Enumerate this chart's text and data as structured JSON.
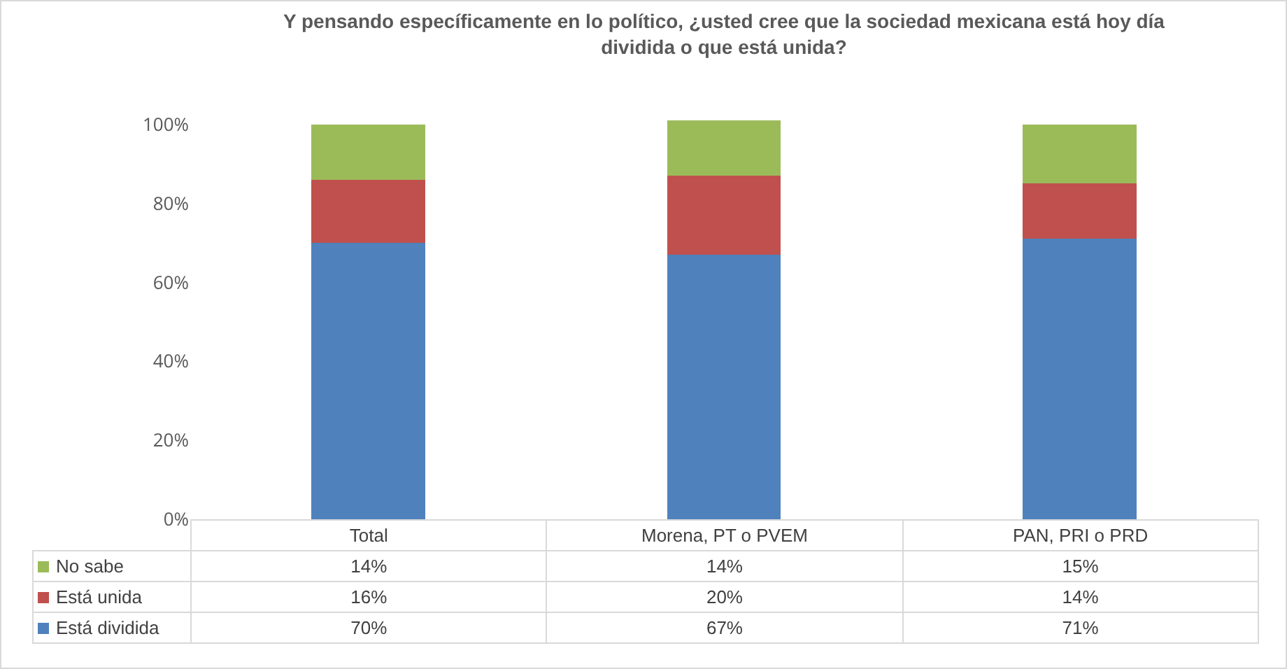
{
  "chart_data": {
    "type": "bar",
    "title": "Y pensando específicamente en lo político, ¿usted cree que la sociedad mexicana está hoy día dividida o que está unida?",
    "categories": [
      "Total",
      "Morena, PT o PVEM",
      "PAN, PRI o PRD"
    ],
    "stacked": true,
    "series": [
      {
        "name": "Está dividida",
        "color": "#4f81bd",
        "values": [
          70,
          67,
          71
        ],
        "value_labels": [
          "70%",
          "67%",
          "71%"
        ]
      },
      {
        "name": "Está unida",
        "color": "#c0504d",
        "values": [
          16,
          20,
          14
        ],
        "value_labels": [
          "16%",
          "20%",
          "14%"
        ]
      },
      {
        "name": "No sabe",
        "color": "#9bbb59",
        "values": [
          14,
          14,
          15
        ],
        "value_labels": [
          "14%",
          "14%",
          "15%"
        ]
      }
    ],
    "ylim": [
      0,
      101
    ],
    "legend": "bottom left",
    "yticks": [
      {
        "value": 0,
        "label": "0%"
      },
      {
        "value": 20,
        "label": "20%"
      },
      {
        "value": 40,
        "label": "40%"
      },
      {
        "value": 60,
        "label": "60%"
      },
      {
        "value": 80,
        "label": "80%"
      },
      {
        "value": 100,
        "label": "100%"
      }
    ],
    "grid": false
  }
}
